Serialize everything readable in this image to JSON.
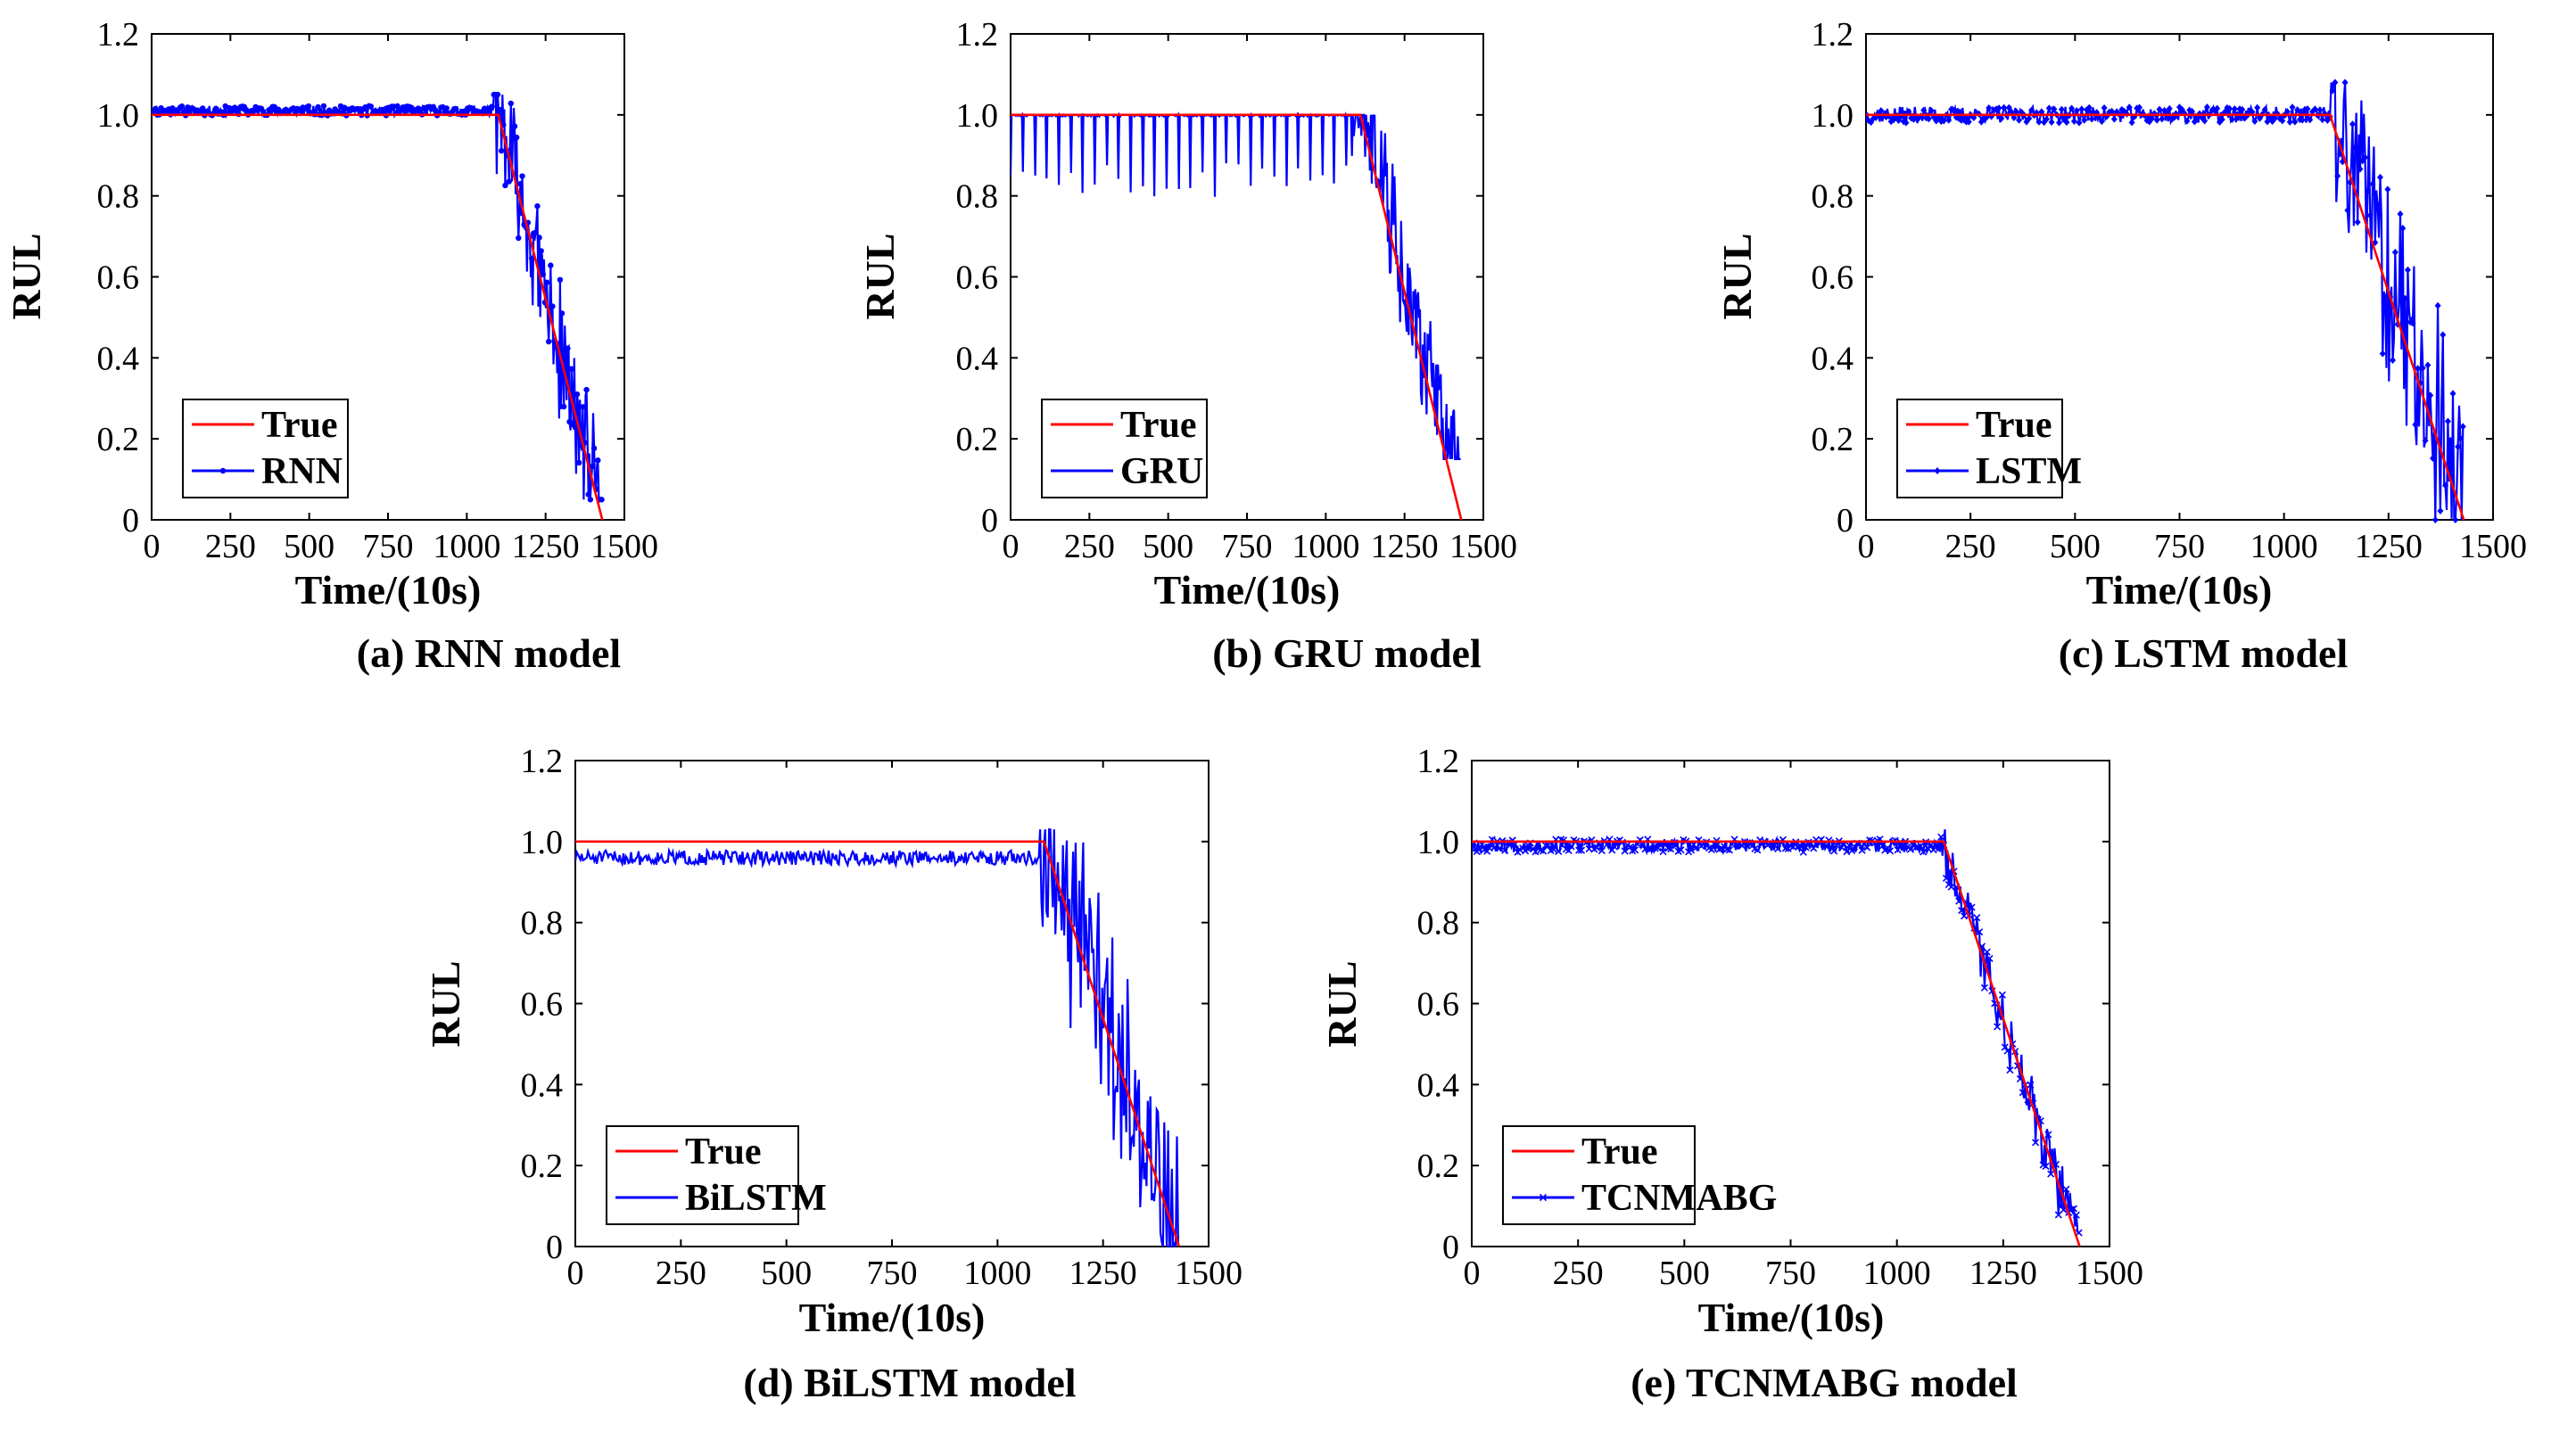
{
  "figure": {
    "background": "#ffffff"
  },
  "chart_data": [
    {
      "id": "a",
      "type": "line",
      "caption": "(a) RNN model",
      "xlabel": "Time/(10s)",
      "ylabel": "RUL",
      "xlim": [
        0,
        1500
      ],
      "ylim": [
        0,
        1.2
      ],
      "xticks": [
        0,
        250,
        500,
        750,
        1000,
        1250,
        1500
      ],
      "yticks": [
        0,
        0.2,
        0.4,
        0.6,
        0.8,
        1.0,
        1.2
      ],
      "ytick_labels": [
        "0",
        "0.2",
        "0.4",
        "0.6",
        "0.8",
        "1.0",
        "1.2"
      ],
      "legend": {
        "position": "bottom-left",
        "entries": [
          "True",
          "RNN"
        ]
      },
      "series": [
        {
          "name": "True",
          "color": "#ff0000",
          "kind": "true",
          "x": [
            0,
            1100,
            1430
          ],
          "y": [
            1.0,
            1.0,
            0.0
          ]
        },
        {
          "name": "RNN",
          "color": "#0000ff",
          "kind": "pred",
          "marker": "dot",
          "model": {
            "plateau": 1.01,
            "plateauNoise": 0.012,
            "spikeProb": 0,
            "spikeDepth": 0,
            "degradeNoise": 0.13,
            "degradeBias": 0.0,
            "start": 1085,
            "end": 1430,
            "clampMin": 0.05,
            "clampMax": 1.05,
            "seed": 11
          }
        }
      ]
    },
    {
      "id": "b",
      "type": "line",
      "caption": "(b) GRU model",
      "xlabel": "Time/(10s)",
      "ylabel": "RUL",
      "xlim": [
        0,
        1500
      ],
      "ylim": [
        0,
        1.2
      ],
      "xticks": [
        0,
        250,
        500,
        750,
        1000,
        1250,
        1500
      ],
      "yticks": [
        0,
        0.2,
        0.4,
        0.6,
        0.8,
        1.0,
        1.2
      ],
      "ytick_labels": [
        "0",
        "0.2",
        "0.4",
        "0.6",
        "0.8",
        "1.0",
        "1.2"
      ],
      "legend": {
        "position": "bottom-left",
        "entries": [
          "True",
          "GRU"
        ]
      },
      "series": [
        {
          "name": "True",
          "color": "#ff0000",
          "kind": "true",
          "x": [
            0,
            1110,
            1430
          ],
          "y": [
            1.0,
            1.0,
            0.0
          ]
        },
        {
          "name": "GRU",
          "color": "#0000ff",
          "kind": "pred",
          "marker": "none",
          "model": {
            "plateau": 1.0,
            "plateauNoise": 0.004,
            "spikeProb": 1,
            "spikeEvery": 38,
            "spikeDepth": 0.2,
            "degradeNoise": 0.12,
            "degradeBias": 0.05,
            "start": 1080,
            "end": 1430,
            "clampMin": 0.15,
            "clampMax": 1.0,
            "seed": 23
          }
        }
      ]
    },
    {
      "id": "c",
      "type": "line",
      "caption": "(c) LSTM model",
      "xlabel": "Time/(10s)",
      "ylabel": "RUL",
      "xlim": [
        0,
        1500
      ],
      "ylim": [
        0,
        1.2
      ],
      "xticks": [
        0,
        250,
        500,
        750,
        1000,
        1250,
        1500
      ],
      "yticks": [
        0,
        0.2,
        0.4,
        0.6,
        0.8,
        1.0,
        1.2
      ],
      "ytick_labels": [
        "0",
        "0.2",
        "0.4",
        "0.6",
        "0.8",
        "1.0",
        "1.2"
      ],
      "legend": {
        "position": "bottom-left",
        "entries": [
          "True",
          "LSTM"
        ]
      },
      "series": [
        {
          "name": "True",
          "color": "#ff0000",
          "kind": "true",
          "x": [
            0,
            1110,
            1430
          ],
          "y": [
            1.0,
            1.0,
            0.0
          ]
        },
        {
          "name": "LSTM",
          "color": "#0000ff",
          "kind": "pred",
          "marker": "diamond",
          "model": {
            "plateau": 1.0,
            "plateauNoise": 0.02,
            "spikeProb": 0,
            "spikeDepth": 0,
            "degradeNoise": 0.22,
            "degradeBias": 0.05,
            "start": 1110,
            "end": 1430,
            "clampMin": 0.0,
            "clampMax": 1.08,
            "seed": 37
          }
        }
      ]
    },
    {
      "id": "d",
      "type": "line",
      "caption": "(d) BiLSTM model",
      "xlabel": "Time/(10s)",
      "ylabel": "RUL",
      "xlim": [
        0,
        1500
      ],
      "ylim": [
        0,
        1.2
      ],
      "xticks": [
        0,
        250,
        500,
        750,
        1000,
        1250,
        1500
      ],
      "yticks": [
        0,
        0.2,
        0.4,
        0.6,
        0.8,
        1.0,
        1.2
      ],
      "ytick_labels": [
        "0",
        "0.2",
        "0.4",
        "0.6",
        "0.8",
        "1.0",
        "1.2"
      ],
      "legend": {
        "position": "bottom-left",
        "entries": [
          "True",
          "BiLSTM"
        ]
      },
      "series": [
        {
          "name": "True",
          "color": "#ff0000",
          "kind": "true",
          "x": [
            0,
            1110,
            1430
          ],
          "y": [
            1.0,
            1.0,
            0.0
          ]
        },
        {
          "name": "BiLSTM",
          "color": "#0000ff",
          "kind": "pred",
          "marker": "none",
          "model": {
            "plateau": 0.96,
            "plateauNoise": 0.018,
            "spikeProb": 0,
            "spikeDepth": 0,
            "degradeNoise": 0.2,
            "degradeBias": 0.02,
            "start": 1100,
            "end": 1430,
            "clampMin": 0.0,
            "clampMax": 1.03,
            "seed": 51
          }
        }
      ]
    },
    {
      "id": "e",
      "type": "line",
      "caption": "(e) TCNMABG model",
      "xlabel": "Time/(10s)",
      "ylabel": "RUL",
      "xlim": [
        0,
        1500
      ],
      "ylim": [
        0,
        1.2
      ],
      "xticks": [
        0,
        250,
        500,
        750,
        1000,
        1250,
        1500
      ],
      "yticks": [
        0,
        0.2,
        0.4,
        0.6,
        0.8,
        1.0,
        1.2
      ],
      "ytick_labels": [
        "0",
        "0.2",
        "0.4",
        "0.6",
        "0.8",
        "1.0",
        "1.2"
      ],
      "legend": {
        "position": "bottom-left",
        "entries": [
          "True",
          "TCNMABG"
        ]
      },
      "series": [
        {
          "name": "True",
          "color": "#ff0000",
          "kind": "true",
          "x": [
            0,
            1110,
            1430
          ],
          "y": [
            1.0,
            1.0,
            0.0
          ]
        },
        {
          "name": "TCNMABG",
          "color": "#0000ff",
          "kind": "pred",
          "marker": "cross",
          "model": {
            "plateau": 0.99,
            "plateauNoise": 0.016,
            "spikeProb": 0,
            "spikeDepth": 0,
            "degradeNoise": 0.06,
            "degradeBias": 0.0,
            "start": 1100,
            "end": 1430,
            "clampMin": 0.0,
            "clampMax": 1.03,
            "seed": 67
          }
        }
      ]
    }
  ]
}
